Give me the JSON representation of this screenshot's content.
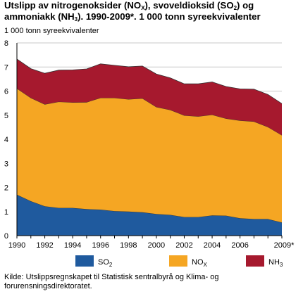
{
  "chart_data": {
    "type": "area",
    "stacked": true,
    "title": "Utslipp av nitrogenoksider (NOX), svoveldioksid (SO2) og ammoniakk (NH3). 1990-2009*. 1 000 tonn syreekvivalenter",
    "ylabel": "1 000 tonn syreekvivalenter",
    "xlabel": "",
    "x": [
      1990,
      1991,
      1992,
      1993,
      1994,
      1995,
      1996,
      1997,
      1998,
      1999,
      2000,
      2001,
      2002,
      2003,
      2004,
      2005,
      2006,
      2007,
      2008,
      2009
    ],
    "x_tick_labels": [
      "1990",
      "1992",
      "1994",
      "1996",
      "1998",
      "2000",
      "2002",
      "2004",
      "2006",
      "2009*"
    ],
    "y_ticks": [
      0,
      1,
      2,
      3,
      4,
      5,
      6,
      7,
      8
    ],
    "ylim": [
      0,
      8
    ],
    "grid": true,
    "legend_position": "bottom",
    "series": [
      {
        "name": "SO2",
        "color": "#1f5a9e",
        "values": [
          1.7,
          1.43,
          1.22,
          1.15,
          1.15,
          1.1,
          1.08,
          1.02,
          1.0,
          0.97,
          0.9,
          0.86,
          0.77,
          0.77,
          0.84,
          0.83,
          0.72,
          0.69,
          0.69,
          0.55
        ]
      },
      {
        "name": "NOX",
        "color": "#f5a623",
        "values": [
          4.41,
          4.29,
          4.23,
          4.41,
          4.38,
          4.44,
          4.64,
          4.7,
          4.66,
          4.73,
          4.44,
          4.36,
          4.22,
          4.18,
          4.18,
          4.03,
          4.06,
          4.05,
          3.82,
          3.62
        ]
      },
      {
        "name": "NH3",
        "color": "#a6192e",
        "values": [
          1.22,
          1.21,
          1.29,
          1.31,
          1.35,
          1.38,
          1.41,
          1.35,
          1.35,
          1.34,
          1.37,
          1.33,
          1.31,
          1.35,
          1.36,
          1.33,
          1.31,
          1.34,
          1.35,
          1.31
        ]
      }
    ]
  },
  "legend": [
    {
      "base": "SO",
      "sub": "2",
      "color": "#1f5a9e"
    },
    {
      "base": "NO",
      "sub": "X",
      "color": "#f5a623"
    },
    {
      "base": "NH",
      "sub": "3",
      "color": "#a6192e"
    }
  ],
  "source": "Kilde: Utslippsregnskapet til Statistisk sentralbyrå og Klima- og forurensningsdirektoratet."
}
